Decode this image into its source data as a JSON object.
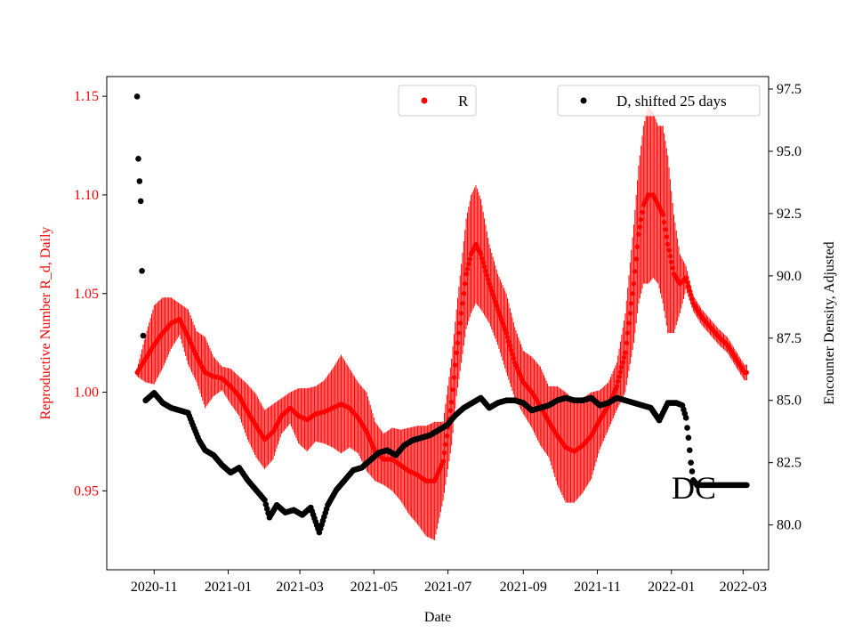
{
  "chart_data": {
    "type": "scatter",
    "xlabel": "Date",
    "ylabel_left": "Reproductive Number R_d, Daily",
    "ylabel_right": "Encounter Density, Adjusted",
    "annotation": "DC",
    "x_range": [
      "2020-09-23",
      "2022-03-22"
    ],
    "ylim_left": [
      0.91,
      1.16
    ],
    "ylim_right": [
      78.2,
      98.0
    ],
    "x_ticks": [
      {
        "date": "2020-11-01",
        "label": "2020-11"
      },
      {
        "date": "2021-01-01",
        "label": "2021-01"
      },
      {
        "date": "2021-03-01",
        "label": "2021-03"
      },
      {
        "date": "2021-05-01",
        "label": "2021-05"
      },
      {
        "date": "2021-07-01",
        "label": "2021-07"
      },
      {
        "date": "2021-09-01",
        "label": "2021-09"
      },
      {
        "date": "2021-11-01",
        "label": "2021-11"
      },
      {
        "date": "2022-01-01",
        "label": "2022-01"
      },
      {
        "date": "2022-03-01",
        "label": "2022-03"
      }
    ],
    "y_ticks_left": [
      {
        "value": 0.95,
        "label": "0.95"
      },
      {
        "value": 1.0,
        "label": "1.00"
      },
      {
        "value": 1.05,
        "label": "1.05"
      },
      {
        "value": 1.1,
        "label": "1.10"
      },
      {
        "value": 1.15,
        "label": "1.15"
      }
    ],
    "y_ticks_right": [
      {
        "value": 80.0,
        "label": "80.0"
      },
      {
        "value": 82.5,
        "label": "82.5"
      },
      {
        "value": 85.0,
        "label": "85.0"
      },
      {
        "value": 87.5,
        "label": "87.5"
      },
      {
        "value": 90.0,
        "label": "90.0"
      },
      {
        "value": 92.5,
        "label": "92.5"
      },
      {
        "value": 95.0,
        "label": "95.0"
      },
      {
        "value": 97.5,
        "label": "97.5"
      }
    ],
    "legend": [
      {
        "label": "R",
        "color": "#ff0000",
        "position": "top-center"
      },
      {
        "label": "D, shifted 25 days",
        "color": "#000000",
        "position": "top-right"
      }
    ],
    "series": [
      {
        "name": "R",
        "axis": "left",
        "color": "#ff0000",
        "style": "points-with-error-bars",
        "points": [
          [
            "2020-10-18",
            1.01,
            0.002
          ],
          [
            "2020-10-25",
            1.017,
            0.012
          ],
          [
            "2020-11-01",
            1.024,
            0.02
          ],
          [
            "2020-11-08",
            1.03,
            0.018
          ],
          [
            "2020-11-15",
            1.035,
            0.013
          ],
          [
            "2020-11-22",
            1.037,
            0.008
          ],
          [
            "2020-11-29",
            1.028,
            0.014
          ],
          [
            "2020-12-06",
            1.018,
            0.013
          ],
          [
            "2020-12-13",
            1.01,
            0.018
          ],
          [
            "2020-12-20",
            1.008,
            0.01
          ],
          [
            "2020-12-27",
            1.007,
            0.006
          ],
          [
            "2021-01-03",
            1.003,
            0.009
          ],
          [
            "2021-01-10",
            0.998,
            0.01
          ],
          [
            "2021-01-17",
            0.99,
            0.014
          ],
          [
            "2021-01-24",
            0.983,
            0.016
          ],
          [
            "2021-01-31",
            0.976,
            0.015
          ],
          [
            "2021-02-07",
            0.98,
            0.014
          ],
          [
            "2021-02-14",
            0.988,
            0.009
          ],
          [
            "2021-02-21",
            0.992,
            0.008
          ],
          [
            "2021-02-28",
            0.988,
            0.014
          ],
          [
            "2021-03-07",
            0.986,
            0.016
          ],
          [
            "2021-03-14",
            0.989,
            0.014
          ],
          [
            "2021-03-21",
            0.99,
            0.016
          ],
          [
            "2021-03-28",
            0.992,
            0.02
          ],
          [
            "2021-04-04",
            0.994,
            0.025
          ],
          [
            "2021-04-11",
            0.992,
            0.02
          ],
          [
            "2021-04-18",
            0.987,
            0.018
          ],
          [
            "2021-04-25",
            0.98,
            0.02
          ],
          [
            "2021-05-02",
            0.97,
            0.015
          ],
          [
            "2021-05-09",
            0.966,
            0.013
          ],
          [
            "2021-05-16",
            0.966,
            0.016
          ],
          [
            "2021-05-23",
            0.963,
            0.018
          ],
          [
            "2021-05-30",
            0.96,
            0.022
          ],
          [
            "2021-06-06",
            0.958,
            0.025
          ],
          [
            "2021-06-13",
            0.955,
            0.028
          ],
          [
            "2021-06-20",
            0.955,
            0.03
          ],
          [
            "2021-06-27",
            0.965,
            0.02
          ],
          [
            "2021-07-04",
            0.995,
            0.022
          ],
          [
            "2021-07-08",
            1.02,
            0.022
          ],
          [
            "2021-07-12",
            1.04,
            0.025
          ],
          [
            "2021-07-16",
            1.06,
            0.028
          ],
          [
            "2021-07-20",
            1.07,
            0.03
          ],
          [
            "2021-07-24",
            1.075,
            0.03
          ],
          [
            "2021-07-28",
            1.07,
            0.028
          ],
          [
            "2021-08-04",
            1.055,
            0.02
          ],
          [
            "2021-08-11",
            1.042,
            0.018
          ],
          [
            "2021-08-18",
            1.03,
            0.02
          ],
          [
            "2021-08-25",
            1.015,
            0.018
          ],
          [
            "2021-09-01",
            1.005,
            0.016
          ],
          [
            "2021-09-08",
            1.0,
            0.018
          ],
          [
            "2021-09-15",
            0.993,
            0.02
          ],
          [
            "2021-09-22",
            0.985,
            0.018
          ],
          [
            "2021-09-29",
            0.978,
            0.025
          ],
          [
            "2021-10-06",
            0.972,
            0.028
          ],
          [
            "2021-10-13",
            0.97,
            0.026
          ],
          [
            "2021-10-20",
            0.973,
            0.024
          ],
          [
            "2021-10-27",
            0.978,
            0.022
          ],
          [
            "2021-11-03",
            0.986,
            0.015
          ],
          [
            "2021-11-10",
            0.993,
            0.012
          ],
          [
            "2021-11-17",
            1.003,
            0.012
          ],
          [
            "2021-11-24",
            1.02,
            0.02
          ],
          [
            "2021-12-01",
            1.055,
            0.03
          ],
          [
            "2021-12-05",
            1.08,
            0.035
          ],
          [
            "2021-12-09",
            1.095,
            0.04
          ],
          [
            "2021-12-13",
            1.1,
            0.045
          ],
          [
            "2021-12-17",
            1.1,
            0.042
          ],
          [
            "2021-12-21",
            1.095,
            0.04
          ],
          [
            "2021-12-25",
            1.09,
            0.045
          ],
          [
            "2021-12-29",
            1.075,
            0.045
          ],
          [
            "2022-01-03",
            1.06,
            0.03
          ],
          [
            "2022-01-08",
            1.055,
            0.015
          ],
          [
            "2022-01-13",
            1.058,
            0.006
          ],
          [
            "2022-01-19",
            1.045,
            0.004
          ],
          [
            "2022-01-26",
            1.038,
            0.004
          ],
          [
            "2022-02-02",
            1.033,
            0.004
          ],
          [
            "2022-02-09",
            1.028,
            0.004
          ],
          [
            "2022-02-16",
            1.024,
            0.004
          ],
          [
            "2022-02-23",
            1.017,
            0.004
          ],
          [
            "2022-03-02",
            1.01,
            0.004
          ],
          [
            "2022-03-04",
            1.01,
            0.004
          ]
        ]
      },
      {
        "name": "D, shifted 25 days",
        "axis": "right",
        "color": "#000000",
        "style": "points",
        "points": [
          [
            "2020-10-18",
            97.2
          ],
          [
            "2020-10-19",
            94.7
          ],
          [
            "2020-10-20",
            93.8
          ],
          [
            "2020-10-21",
            93.0
          ],
          [
            "2020-10-22",
            90.2
          ],
          [
            "2020-10-23",
            87.6
          ],
          [
            "2020-10-25",
            85.0
          ],
          [
            "2020-11-01",
            85.3
          ],
          [
            "2020-11-08",
            84.9
          ],
          [
            "2020-11-15",
            84.7
          ],
          [
            "2020-11-22",
            84.6
          ],
          [
            "2020-11-29",
            84.5
          ],
          [
            "2020-12-03",
            84.0
          ],
          [
            "2020-12-08",
            83.4
          ],
          [
            "2020-12-13",
            83.0
          ],
          [
            "2020-12-20",
            82.8
          ],
          [
            "2020-12-27",
            82.4
          ],
          [
            "2021-01-03",
            82.1
          ],
          [
            "2021-01-10",
            82.3
          ],
          [
            "2021-01-17",
            81.8
          ],
          [
            "2021-01-24",
            81.4
          ],
          [
            "2021-01-31",
            81.0
          ],
          [
            "2021-02-04",
            80.3
          ],
          [
            "2021-02-10",
            80.8
          ],
          [
            "2021-02-17",
            80.5
          ],
          [
            "2021-02-24",
            80.6
          ],
          [
            "2021-03-03",
            80.4
          ],
          [
            "2021-03-10",
            80.7
          ],
          [
            "2021-03-17",
            79.7
          ],
          [
            "2021-03-24",
            80.8
          ],
          [
            "2021-03-31",
            81.4
          ],
          [
            "2021-04-07",
            81.8
          ],
          [
            "2021-04-14",
            82.2
          ],
          [
            "2021-04-21",
            82.3
          ],
          [
            "2021-04-28",
            82.6
          ],
          [
            "2021-05-05",
            82.9
          ],
          [
            "2021-05-12",
            83.0
          ],
          [
            "2021-05-19",
            82.8
          ],
          [
            "2021-05-26",
            83.2
          ],
          [
            "2021-06-02",
            83.4
          ],
          [
            "2021-06-09",
            83.5
          ],
          [
            "2021-06-16",
            83.6
          ],
          [
            "2021-06-23",
            83.8
          ],
          [
            "2021-06-30",
            84.0
          ],
          [
            "2021-07-07",
            84.4
          ],
          [
            "2021-07-14",
            84.7
          ],
          [
            "2021-07-21",
            84.9
          ],
          [
            "2021-07-28",
            85.1
          ],
          [
            "2021-08-04",
            84.7
          ],
          [
            "2021-08-11",
            84.9
          ],
          [
            "2021-08-18",
            85.0
          ],
          [
            "2021-08-25",
            85.0
          ],
          [
            "2021-09-01",
            84.9
          ],
          [
            "2021-09-08",
            84.6
          ],
          [
            "2021-09-15",
            84.7
          ],
          [
            "2021-09-22",
            84.8
          ],
          [
            "2021-09-29",
            85.0
          ],
          [
            "2021-10-06",
            85.1
          ],
          [
            "2021-10-13",
            85.0
          ],
          [
            "2021-10-20",
            85.0
          ],
          [
            "2021-10-27",
            85.1
          ],
          [
            "2021-11-03",
            84.8
          ],
          [
            "2021-11-10",
            84.9
          ],
          [
            "2021-11-17",
            85.1
          ],
          [
            "2021-11-24",
            85.0
          ],
          [
            "2021-12-01",
            84.9
          ],
          [
            "2021-12-08",
            84.8
          ],
          [
            "2021-12-15",
            84.7
          ],
          [
            "2021-12-22",
            84.2
          ],
          [
            "2021-12-29",
            84.9
          ],
          [
            "2022-01-05",
            84.9
          ],
          [
            "2022-01-10",
            84.8
          ],
          [
            "2022-01-13",
            84.3
          ],
          [
            "2022-01-15",
            83.5
          ],
          [
            "2022-01-17",
            82.5
          ],
          [
            "2022-01-19",
            81.8
          ],
          [
            "2022-01-22",
            81.6
          ],
          [
            "2022-01-29",
            81.6
          ],
          [
            "2022-02-05",
            81.6
          ],
          [
            "2022-02-12",
            81.6
          ],
          [
            "2022-02-19",
            81.6
          ],
          [
            "2022-02-26",
            81.6
          ],
          [
            "2022-03-04",
            81.6
          ]
        ]
      }
    ]
  }
}
